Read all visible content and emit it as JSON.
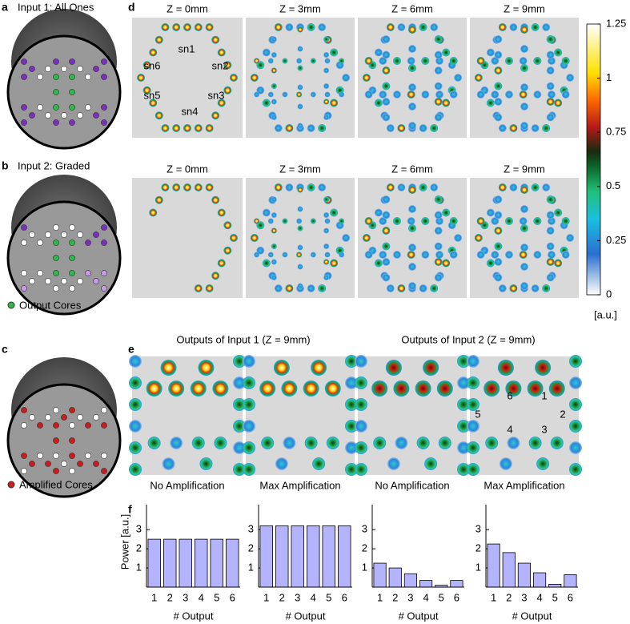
{
  "panel_labels": [
    "a",
    "b",
    "c",
    "d",
    "e",
    "f"
  ],
  "panel_a": {
    "title": "Input 1: All Ones"
  },
  "panel_b": {
    "title": "Input 2: Graded",
    "legend": "Output Cores"
  },
  "panel_c": {
    "legend": "Amplified Cores"
  },
  "panel_d": {
    "z_labels": [
      [
        "Z = 0mm",
        "Z = 3mm",
        "Z = 6mm",
        "Z = 9mm"
      ],
      [
        "Z = 0mm",
        "Z = 3mm",
        "Z = 6mm",
        "Z = 9mm"
      ]
    ],
    "supernodes": [
      "sn1",
      "sn2",
      "sn3",
      "sn4",
      "sn5",
      "sn6"
    ],
    "colorbar": {
      "ylim": [
        0,
        1.25
      ],
      "yticks": [
        0,
        0.25,
        0.5,
        0.75,
        1,
        1.25
      ],
      "unit": "[a.u.]"
    }
  },
  "panel_e": {
    "titles": [
      "Outputs of Input 1 (Z = 9mm)",
      "Outputs of Input 2 (Z = 9mm)"
    ],
    "captions": [
      "No Amplification",
      "Max Amplification",
      "No Amplification",
      "Max Amplification"
    ],
    "output_numbers": [
      "1",
      "2",
      "3",
      "4",
      "5",
      "6"
    ]
  },
  "chart_data": [
    {
      "type": "bar",
      "categories": [
        "1",
        "2",
        "3",
        "4",
        "5",
        "6"
      ],
      "values": [
        2.5,
        2.5,
        2.5,
        2.5,
        2.5,
        2.5
      ],
      "color": "#b3b3ff",
      "ylim": [
        0,
        4.3
      ],
      "yticks": [
        1,
        2,
        3
      ],
      "x_label": "# Output",
      "y_label": "Power [a.u.]"
    },
    {
      "type": "bar",
      "categories": [
        "1",
        "2",
        "3",
        "4",
        "5",
        "6"
      ],
      "values": [
        3.2,
        3.2,
        3.2,
        3.2,
        3.2,
        3.2
      ],
      "color": "#b3b3ff",
      "ylim": [
        0,
        4.3
      ],
      "yticks": [
        1,
        2,
        3
      ],
      "x_label": "# Output"
    },
    {
      "type": "bar",
      "categories": [
        "1",
        "2",
        "3",
        "4",
        "5",
        "6"
      ],
      "values": [
        1.25,
        1.0,
        0.7,
        0.35,
        0.1,
        0.35
      ],
      "color": "#b3b3ff",
      "ylim": [
        0,
        4.3
      ],
      "yticks": [
        1,
        2,
        3
      ],
      "x_label": "# Output"
    },
    {
      "type": "bar",
      "categories": [
        "1",
        "2",
        "3",
        "4",
        "5",
        "6"
      ],
      "values": [
        2.25,
        1.8,
        1.25,
        0.75,
        0.15,
        0.65
      ],
      "color": "#b3b3ff",
      "ylim": [
        0,
        4.3
      ],
      "yticks": [
        1,
        2,
        3
      ],
      "x_label": "# Output"
    }
  ]
}
